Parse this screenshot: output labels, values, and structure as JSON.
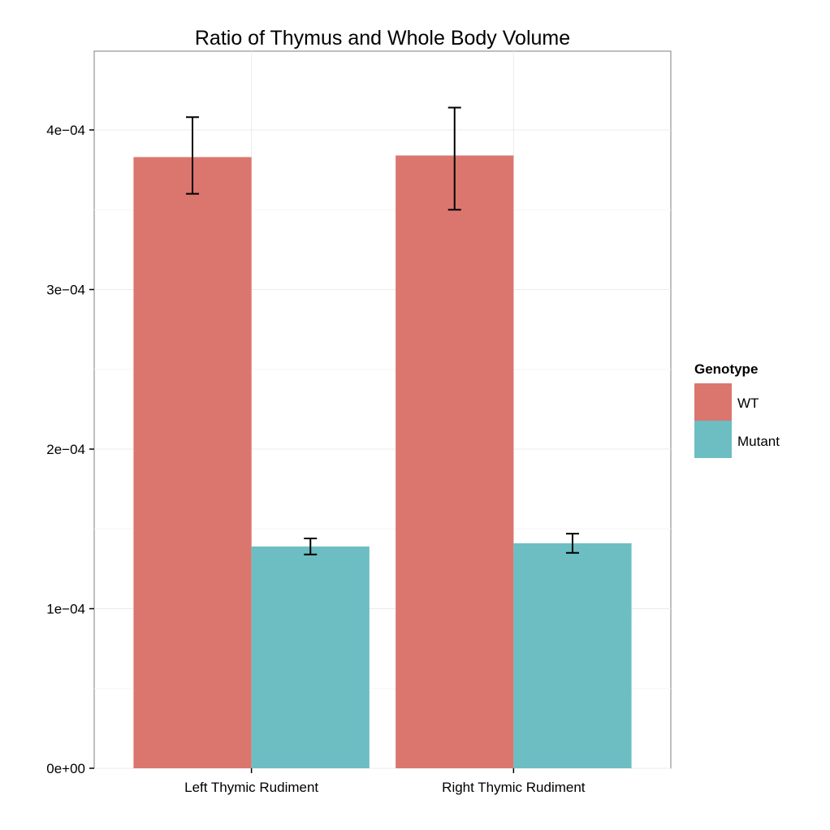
{
  "chart_data": {
    "type": "bar",
    "title": "Ratio of Thymus and Whole Body Volume",
    "xlabel": "",
    "ylabel": "",
    "categories": [
      "Left Thymic Rudiment",
      "Right Thymic Rudiment"
    ],
    "series": [
      {
        "name": "WT",
        "color": "#DB766E",
        "values": [
          0.000383,
          0.000384
        ],
        "error_low": [
          0.00036,
          0.00035
        ],
        "error_high": [
          0.000408,
          0.000414
        ]
      },
      {
        "name": "Mutant",
        "color": "#6CBEC3",
        "values": [
          0.000139,
          0.000141
        ],
        "error_low": [
          0.000134,
          0.000135
        ],
        "error_high": [
          0.000144,
          0.000147
        ]
      }
    ],
    "ylim": [
      0,
      0.00045
    ],
    "yticks": [
      0,
      0.0001,
      0.0002,
      0.0003,
      0.0004
    ],
    "ytick_labels": [
      "0e+00",
      "1e−04",
      "2e−04",
      "3e−04",
      "4e−04"
    ],
    "legend": {
      "title": "Genotype",
      "position": "right"
    },
    "grid": true
  }
}
